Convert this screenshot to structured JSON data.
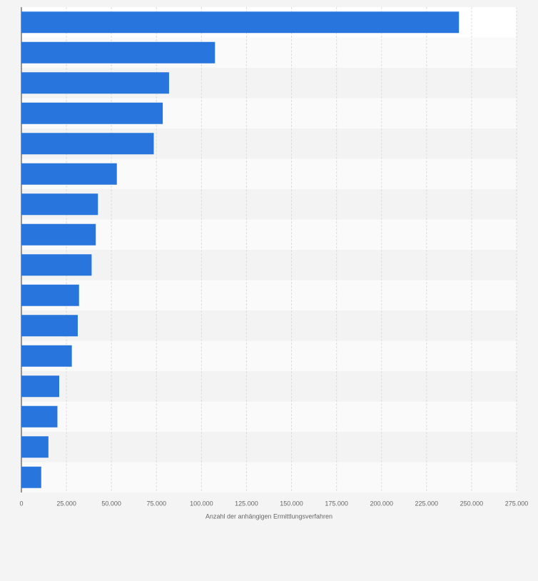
{
  "chart_data": {
    "type": "bar",
    "orientation": "horizontal",
    "x_label": "Anzahl der anhängigen Ermittlungsverfahren",
    "categories": [
      null,
      null,
      null,
      null,
      null,
      null,
      null,
      null,
      null,
      null,
      null,
      null,
      null,
      null,
      null,
      null
    ],
    "values": [
      243000,
      107500,
      82000,
      78500,
      73500,
      53000,
      42500,
      41300,
      39000,
      32000,
      31300,
      28000,
      21000,
      20000,
      15000,
      11000
    ],
    "color": "#2876dd",
    "xlim": [
      0,
      275000
    ],
    "xticks": [
      0,
      {
        "value": 25000,
        "label": "25.000"
      },
      {
        "value": 50000,
        "label": "50.000"
      },
      {
        "value": 75000,
        "label": "75.000"
      },
      {
        "value": 100000,
        "label": "100.000"
      },
      {
        "value": 125000,
        "label": "125.000"
      },
      {
        "value": 150000,
        "label": "150.000"
      },
      {
        "value": 175000,
        "label": "175.000"
      },
      {
        "value": 200000,
        "label": "200.000"
      },
      {
        "value": 225000,
        "label": "225.000"
      },
      {
        "value": 250000,
        "label": "250.000"
      },
      {
        "value": 275000,
        "label": "275.000"
      }
    ],
    "grid": true
  }
}
